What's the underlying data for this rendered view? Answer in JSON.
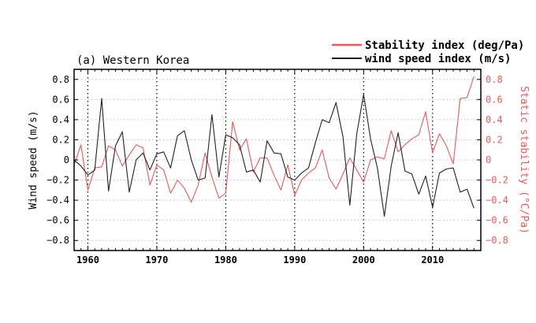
{
  "chart_data": {
    "type": "line",
    "title": "(a) Western Korea",
    "ylabel": "Wind speed (m/s)",
    "y2label": "Static stability (°C/Pa)",
    "ylim": [
      -0.9,
      0.9
    ],
    "y2lim": [
      -0.9,
      0.9
    ],
    "xlim": [
      1958,
      2017
    ],
    "x_ticks": [
      1960,
      1970,
      1980,
      1990,
      2000,
      2010
    ],
    "y_ticks": [
      -0.8,
      -0.6,
      -0.4,
      -0.2,
      0,
      0.2,
      0.4,
      0.6,
      0.8
    ],
    "y_tick_labels": [
      "−0.8",
      "−0.6",
      "−0.4",
      "−0.2",
      "0",
      "0.2",
      "0.4",
      "0.6",
      "0.8"
    ],
    "grid": true,
    "vertical_dotted_lines": [
      1960,
      1970,
      1980,
      1990,
      2000,
      2010
    ],
    "legend_position": "top-right, outside the plot",
    "x": [
      1958,
      1959,
      1960,
      1961,
      1962,
      1963,
      1964,
      1965,
      1966,
      1967,
      1968,
      1969,
      1970,
      1971,
      1972,
      1973,
      1974,
      1975,
      1976,
      1977,
      1978,
      1979,
      1980,
      1981,
      1982,
      1983,
      1984,
      1985,
      1986,
      1987,
      1988,
      1989,
      1990,
      1991,
      1992,
      1993,
      1994,
      1995,
      1996,
      1997,
      1998,
      1999,
      2000,
      2001,
      2002,
      2003,
      2004,
      2005,
      2006,
      2007,
      2008,
      2009,
      2010,
      2011,
      2012,
      2013,
      2014,
      2015,
      2016
    ],
    "series": [
      {
        "name": "Stability index (deg/Pa)",
        "color": "#e8585a",
        "axis": "right",
        "values": [
          -0.05,
          0.15,
          -0.3,
          -0.08,
          -0.07,
          0.14,
          0.1,
          -0.06,
          0.05,
          0.15,
          0.12,
          -0.25,
          -0.05,
          -0.1,
          -0.33,
          -0.2,
          -0.28,
          -0.42,
          -0.25,
          0.07,
          -0.17,
          -0.38,
          -0.33,
          0.38,
          0.1,
          0.21,
          -0.12,
          0.02,
          0.02,
          -0.15,
          -0.3,
          -0.05,
          -0.35,
          -0.2,
          -0.13,
          -0.08,
          0.1,
          -0.18,
          -0.29,
          -0.14,
          0.02,
          -0.1,
          -0.22,
          0.0,
          0.03,
          0.01,
          0.29,
          0.08,
          0.15,
          0.21,
          0.25,
          0.48,
          0.07,
          0.26,
          0.14,
          -0.04,
          0.61,
          0.62,
          0.83
        ]
      },
      {
        "name": "wind speed index (m/s)",
        "color": "#222222",
        "axis": "left",
        "values": [
          0.0,
          -0.06,
          -0.15,
          -0.1,
          0.61,
          -0.31,
          0.14,
          0.28,
          -0.32,
          0.0,
          0.07,
          -0.1,
          0.06,
          0.08,
          -0.08,
          0.24,
          0.29,
          0.0,
          -0.2,
          -0.18,
          0.45,
          -0.17,
          0.25,
          0.22,
          0.15,
          -0.12,
          -0.1,
          -0.22,
          0.19,
          0.07,
          0.06,
          -0.17,
          -0.2,
          -0.13,
          -0.08,
          0.17,
          0.4,
          0.37,
          0.57,
          0.23,
          -0.45,
          0.26,
          0.65,
          0.21,
          -0.08,
          -0.56,
          -0.06,
          0.27,
          -0.11,
          -0.14,
          -0.34,
          -0.16,
          -0.47,
          -0.13,
          -0.09,
          -0.08,
          -0.32,
          -0.29,
          -0.48
        ]
      }
    ]
  }
}
